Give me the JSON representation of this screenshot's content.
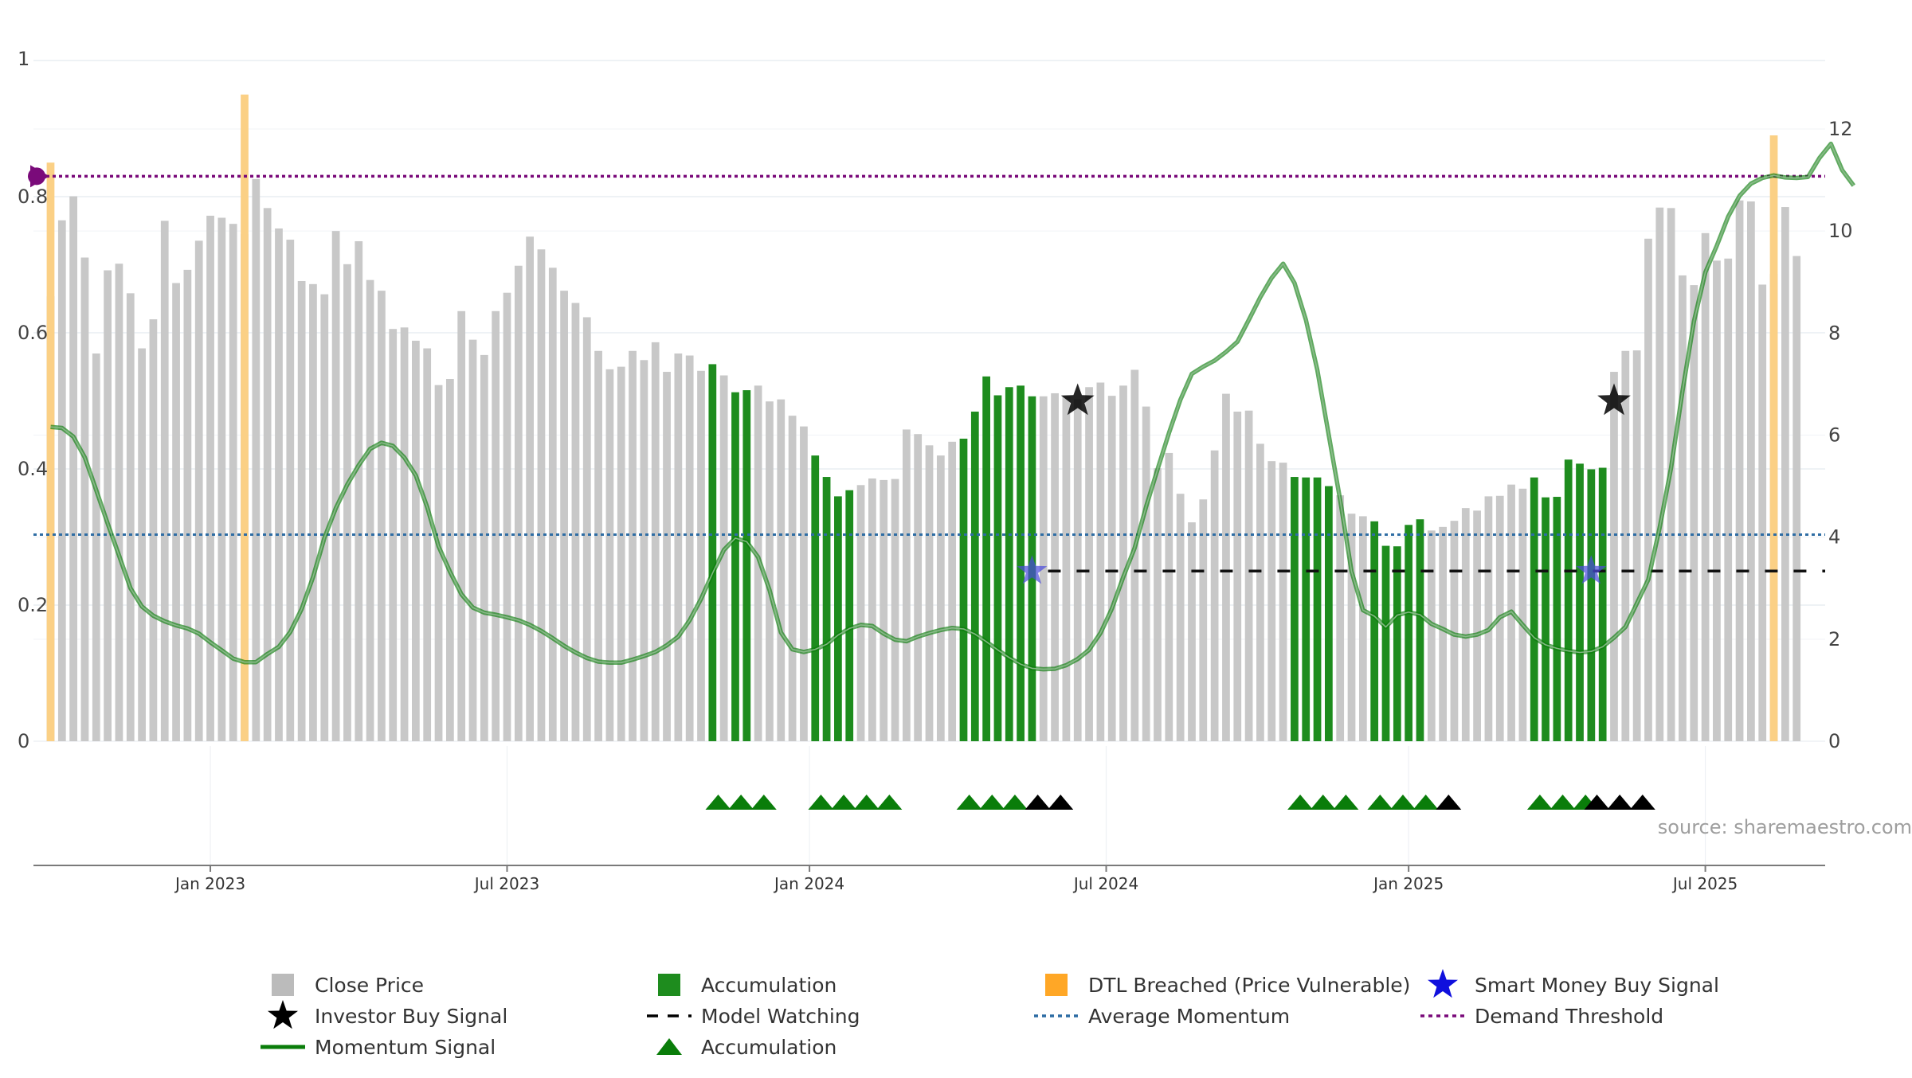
{
  "chart_data": {
    "type": "bar",
    "left_axis": {
      "ticks": [
        "0",
        "0.2",
        "0.4",
        "0.6",
        "0.8",
        "1"
      ],
      "ylim": [
        0,
        1
      ]
    },
    "right_axis": {
      "ticks": [
        "0",
        "2",
        "4",
        "6",
        "8",
        "10",
        "12"
      ],
      "ylim": [
        0,
        12
      ]
    },
    "x_axis": {
      "ticks": [
        {
          "label": "Jan 2023",
          "week": 14
        },
        {
          "label": "Jul 2023",
          "week": 40
        },
        {
          "label": "Jan 2024",
          "week": 66.5
        },
        {
          "label": "Jul 2024",
          "week": 92.5
        },
        {
          "label": "Jan 2025",
          "week": 119
        },
        {
          "label": "Jul 2025",
          "week": 145
        }
      ],
      "xlim": [
        -1.5,
        155.5
      ]
    },
    "close_price_weekly": [
      8.72,
      10.21,
      10.68,
      9.48,
      7.6,
      9.23,
      9.36,
      8.78,
      7.7,
      8.27,
      10.2,
      8.98,
      9.24,
      9.81,
      10.3,
      10.26,
      10.14,
      9.94,
      11.02,
      10.45,
      10.05,
      9.83,
      9.02,
      8.96,
      8.76,
      10.0,
      9.35,
      9.8,
      9.04,
      8.83,
      8.08,
      8.11,
      7.85,
      7.7,
      6.98,
      7.1,
      8.43,
      7.87,
      7.57,
      8.43,
      8.79,
      9.32,
      9.89,
      9.64,
      9.28,
      8.83,
      8.59,
      8.31,
      7.65,
      7.29,
      7.34,
      7.65,
      7.47,
      7.82,
      7.24,
      7.6,
      7.56,
      7.26,
      7.39,
      7.17,
      6.84,
      6.88,
      6.97,
      6.66,
      6.7,
      6.38,
      6.17,
      5.6,
      5.18,
      4.8,
      4.92,
      5.02,
      5.15,
      5.12,
      5.14,
      6.11,
      6.02,
      5.8,
      5.6,
      5.87,
      5.93,
      6.46,
      7.15,
      6.78,
      6.94,
      6.97,
      6.76,
      6.76,
      6.82,
      6.76,
      6.7,
      6.94,
      7.03,
      6.77,
      6.97,
      7.28,
      6.56,
      5.35,
      5.65,
      4.85,
      4.29,
      4.74,
      5.7,
      6.81,
      6.46,
      6.48,
      5.83,
      5.49,
      5.46,
      5.18,
      5.17,
      5.17,
      5.0,
      4.82,
      4.46,
      4.41,
      4.31,
      3.83,
      3.82,
      4.24,
      4.35,
      4.13,
      4.2,
      4.32,
      4.57,
      4.52,
      4.8,
      4.81,
      5.03,
      4.95,
      5.17,
      4.78,
      4.79,
      5.52,
      5.44,
      5.33,
      5.36,
      7.24,
      7.65,
      7.66,
      9.85,
      10.46,
      10.45,
      9.13,
      8.94,
      9.96,
      9.42,
      9.46,
      10.6,
      10.58,
      8.95,
      9.16,
      10.47,
      9.51
    ],
    "accumulation_bars": [
      58,
      60,
      61,
      67,
      68,
      69,
      70,
      80,
      81,
      82,
      83,
      84,
      85,
      86,
      109,
      110,
      111,
      112,
      116,
      117,
      118,
      119,
      120,
      130,
      131,
      132,
      133,
      134,
      135,
      136
    ],
    "dtl_breached_bars": [
      {
        "week": 0,
        "value": 0.85
      },
      {
        "week": 17,
        "value": 0.95
      },
      {
        "week": 151,
        "value": 0.89
      }
    ],
    "momentum_signal_weekly": [
      6.16,
      6.14,
      5.97,
      5.56,
      4.92,
      4.27,
      3.64,
      3.0,
      2.64,
      2.46,
      2.35,
      2.27,
      2.21,
      2.11,
      1.94,
      1.78,
      1.62,
      1.55,
      1.55,
      1.71,
      1.85,
      2.14,
      2.59,
      3.22,
      3.99,
      4.57,
      5.03,
      5.41,
      5.73,
      5.85,
      5.79,
      5.56,
      5.21,
      4.59,
      3.82,
      3.32,
      2.88,
      2.62,
      2.52,
      2.48,
      2.43,
      2.37,
      2.28,
      2.16,
      2.02,
      1.87,
      1.74,
      1.63,
      1.56,
      1.54,
      1.54,
      1.6,
      1.67,
      1.75,
      1.88,
      2.05,
      2.37,
      2.79,
      3.29,
      3.75,
      3.98,
      3.91,
      3.61,
      2.96,
      2.13,
      1.8,
      1.75,
      1.8,
      1.9,
      2.08,
      2.21,
      2.28,
      2.26,
      2.11,
      1.99,
      1.96,
      2.05,
      2.12,
      2.18,
      2.22,
      2.2,
      2.1,
      1.95,
      1.79,
      1.64,
      1.51,
      1.43,
      1.41,
      1.42,
      1.49,
      1.61,
      1.79,
      2.12,
      2.6,
      3.22,
      3.79,
      4.6,
      5.33,
      6.04,
      6.69,
      7.2,
      7.34,
      7.46,
      7.63,
      7.83,
      8.26,
      8.7,
      9.08,
      9.36,
      8.98,
      8.26,
      7.28,
      6.0,
      4.73,
      3.33,
      2.57,
      2.45,
      2.24,
      2.47,
      2.53,
      2.48,
      2.3,
      2.2,
      2.09,
      2.05,
      2.09,
      2.18,
      2.43,
      2.54,
      2.28,
      2.03,
      1.89,
      1.82,
      1.77,
      1.74,
      1.76,
      1.85,
      2.03,
      2.24,
      2.7,
      3.17,
      4.19,
      5.36,
      6.86,
      8.23,
      9.19,
      9.71,
      10.28,
      10.69,
      10.93,
      11.04,
      11.09,
      11.05,
      11.04,
      11.06,
      11.43,
      11.71,
      11.19,
      10.89
    ],
    "average_momentum": 4.05,
    "demand_threshold": 0.83,
    "model_watching": {
      "start_week": 86,
      "end_week": 155,
      "value": 0.25
    },
    "investor_buy_signals": [
      {
        "week": 90,
        "value": 0.5
      },
      {
        "week": 137,
        "value": 0.5
      }
    ],
    "smart_money_buy_signals": [
      {
        "week": 86,
        "value": 0.25
      },
      {
        "week": 135,
        "value": 0.25
      }
    ],
    "accumulation_triangles": {
      "green": [
        58.5,
        60.5,
        62.5,
        67.5,
        69.5,
        71.5,
        73.5,
        80.5,
        82.5,
        84.5,
        109.5,
        111.5,
        113.5,
        116.5,
        118.5,
        120.5,
        130.5,
        132.5,
        134.5
      ],
      "black": [
        86.5,
        88.5,
        122.5,
        135.5,
        137.5,
        139.5
      ]
    },
    "legend": [
      {
        "label": "Close Price",
        "symbol": "square",
        "color": "#bbbbbb"
      },
      {
        "label": "Accumulation",
        "symbol": "square",
        "color": "#1e8c1e"
      },
      {
        "label": "DTL Breached (Price Vulnerable)",
        "symbol": "square",
        "color": "#ffa726"
      },
      {
        "label": "Smart Money Buy Signal",
        "symbol": "star",
        "color": "#1010dd"
      },
      {
        "label": "Investor Buy Signal",
        "symbol": "star",
        "color": "#000000"
      },
      {
        "label": "Model Watching",
        "symbol": "dash",
        "color": "#000000"
      },
      {
        "label": "Average Momentum",
        "symbol": "dot",
        "color": "#2e6da4"
      },
      {
        "label": "Demand Threshold",
        "symbol": "dot",
        "color": "#7a0a7a"
      },
      {
        "label": "Momentum Signal",
        "symbol": "line",
        "color": "#0a7d0a"
      },
      {
        "label": "Accumulation",
        "symbol": "triangle",
        "color": "#0a7d0a"
      }
    ],
    "source": "source: sharemaestro.com",
    "grid": true
  },
  "colors": {
    "close": "#c8c8c8",
    "accumulation": "#1e8c1e",
    "dtl": "#fbd085",
    "momentum": "#0a7d0a",
    "average": "#2e6da4",
    "demand": "#7a0a7a",
    "smart_money": "#4a4add",
    "investor": "#000000"
  }
}
